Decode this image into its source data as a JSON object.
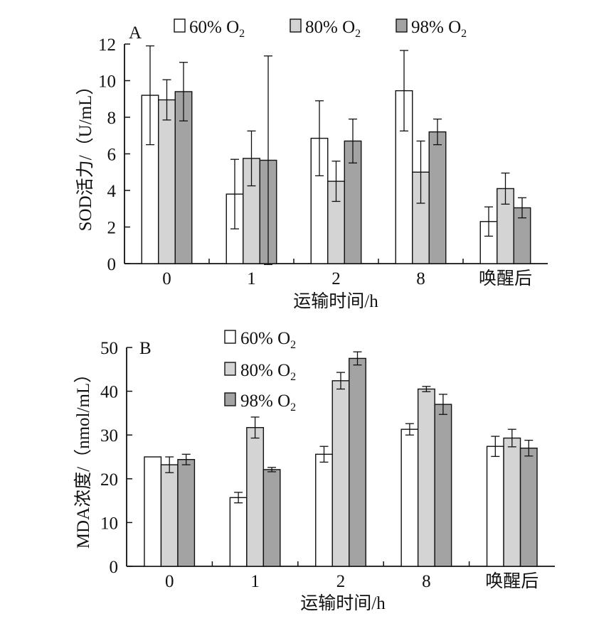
{
  "chart_data": [
    {
      "panel": "A",
      "type": "bar",
      "categories": [
        "0",
        "1",
        "2",
        "8",
        "唤醒后"
      ],
      "xlabel": "运输时间/h",
      "ylabel": "SOD活力/（U/mL）",
      "ylim": [
        0,
        12
      ],
      "yticks": [
        "0",
        "2",
        "4",
        "6",
        "8",
        "10",
        "12"
      ],
      "series": [
        {
          "name": "60% O",
          "name_sub": "2",
          "color": "#ffffff",
          "values": [
            9.2,
            3.8,
            6.85,
            9.45,
            2.3
          ],
          "errors": [
            2.7,
            1.9,
            2.05,
            2.2,
            0.8
          ]
        },
        {
          "name": "80% O",
          "name_sub": "2",
          "color": "#d4d4d4",
          "values": [
            8.95,
            5.75,
            4.5,
            5.0,
            4.1
          ],
          "errors": [
            1.1,
            1.5,
            1.1,
            1.7,
            0.85
          ]
        },
        {
          "name": "98% O",
          "name_sub": "2",
          "color": "#a3a3a3",
          "values": [
            9.4,
            5.65,
            6.7,
            7.2,
            3.05
          ],
          "errors": [
            1.6,
            5.7,
            1.2,
            0.7,
            0.55
          ]
        }
      ],
      "legend_position": "top"
    },
    {
      "panel": "B",
      "type": "bar",
      "categories": [
        "0",
        "1",
        "2",
        "8",
        "唤醒后"
      ],
      "xlabel": "运输时间/h",
      "ylabel": "MDA浓度/（nmol/mL）",
      "ylim": [
        0,
        50
      ],
      "yticks": [
        "0",
        "10",
        "20",
        "30",
        "40",
        "50"
      ],
      "series": [
        {
          "name": "60% O",
          "name_sub": "2",
          "color": "#ffffff",
          "values": [
            25.0,
            15.7,
            25.6,
            31.3,
            27.4
          ],
          "errors": [
            0,
            1.2,
            1.8,
            1.3,
            2.3
          ]
        },
        {
          "name": "80% O",
          "name_sub": "2",
          "color": "#d4d4d4",
          "values": [
            23.2,
            31.7,
            42.4,
            40.5,
            29.3
          ],
          "errors": [
            1.8,
            2.4,
            1.9,
            0.6,
            2.0
          ]
        },
        {
          "name": "98% O",
          "name_sub": "2",
          "color": "#a3a3a3",
          "values": [
            24.4,
            22.1,
            47.5,
            37.0,
            27.0
          ],
          "errors": [
            1.2,
            0.5,
            1.5,
            2.3,
            1.8
          ]
        }
      ],
      "legend_position": "top-left"
    }
  ]
}
